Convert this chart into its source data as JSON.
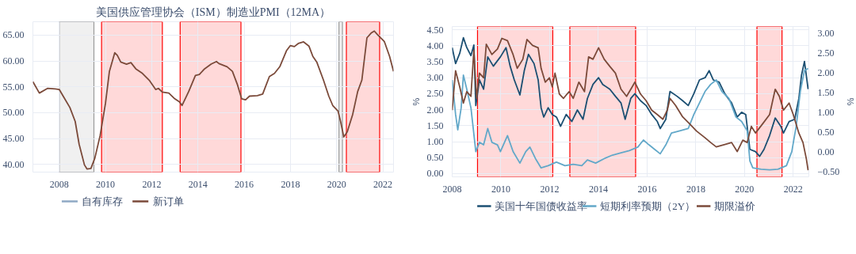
{
  "chart_data": [
    {
      "type": "line",
      "title": "美国供应管理协会（ISM）制造业PMI（12MA）",
      "xlim": [
        2006.86,
        2022.46
      ],
      "ylim": [
        38.5,
        67.6
      ],
      "xticks": [
        2008,
        2010,
        2012,
        2014,
        2016,
        2018,
        2020,
        2022
      ],
      "yticks": [
        {
          "value": 40,
          "label": "40.00"
        },
        {
          "value": 45,
          "label": "45.00"
        },
        {
          "value": 50,
          "label": "50.00"
        },
        {
          "value": 55,
          "label": "55.00"
        },
        {
          "value": 60,
          "label": "60.00"
        },
        {
          "value": 65,
          "label": "65.00"
        }
      ],
      "grid": true,
      "legend": "bottom",
      "bands": [
        {
          "axis": "x",
          "from": 2008.0,
          "to": 2009.5,
          "color": "#9a9a9a"
        },
        {
          "axis": "x",
          "from": 2020.1,
          "to": 2020.25,
          "color": "#9a9a9a"
        },
        {
          "axis": "x",
          "from": 2009.83,
          "to": 2012.46,
          "color": "#ff0000"
        },
        {
          "axis": "x",
          "from": 2013.23,
          "to": 2015.86,
          "color": "#ff0000"
        },
        {
          "axis": "x",
          "from": 2020.42,
          "to": 2021.86,
          "color": "#ff0000"
        }
      ],
      "series": [
        {
          "name": "自有库存",
          "color": "#8fa9c4"
        },
        {
          "name": "新订单",
          "color": "#7b4a3a",
          "x": [
            2006.86,
            2007.14,
            2007.49,
            2007.83,
            2008.0,
            2008.17,
            2008.46,
            2008.69,
            2008.86,
            2009.09,
            2009.2,
            2009.37,
            2009.54,
            2009.77,
            2010.0,
            2010.17,
            2010.4,
            2010.51,
            2010.66,
            2010.91,
            2011.1,
            2011.31,
            2011.6,
            2011.89,
            2012.17,
            2012.29,
            2012.46,
            2012.74,
            2012.97,
            2013.2,
            2013.31,
            2013.6,
            2013.89,
            2014.06,
            2014.29,
            2014.57,
            2014.8,
            2014.91,
            2015.26,
            2015.49,
            2015.71,
            2015.89,
            2016.06,
            2016.23,
            2016.57,
            2016.8,
            2017.09,
            2017.31,
            2017.54,
            2017.83,
            2018.0,
            2018.17,
            2018.34,
            2018.57,
            2018.8,
            2018.97,
            2019.14,
            2019.43,
            2019.66,
            2019.83,
            2020.06,
            2020.17,
            2020.31,
            2020.46,
            2020.69,
            2020.91,
            2021.09,
            2021.31,
            2021.49,
            2021.63,
            2021.77,
            2022.06,
            2022.29,
            2022.46
          ],
          "values": [
            56.0,
            53.8,
            54.7,
            54.6,
            54.5,
            53.2,
            51.0,
            48.3,
            43.9,
            39.9,
            39.1,
            39.2,
            41.2,
            45.6,
            51.8,
            58.0,
            61.6,
            61.1,
            59.8,
            59.4,
            59.7,
            58.5,
            57.6,
            56.3,
            54.5,
            54.7,
            54.0,
            53.8,
            52.8,
            52.1,
            51.4,
            54.1,
            57.2,
            57.4,
            58.5,
            59.4,
            59.9,
            59.5,
            58.9,
            58.0,
            55.4,
            52.7,
            52.5,
            53.2,
            53.3,
            53.6,
            57.0,
            57.6,
            58.9,
            62.0,
            63.0,
            62.8,
            63.4,
            63.7,
            62.9,
            60.9,
            59.8,
            56.3,
            53.2,
            51.4,
            50.3,
            48.3,
            45.3,
            46.3,
            49.6,
            54.1,
            56.3,
            64.5,
            65.4,
            65.8,
            65.1,
            63.8,
            60.9,
            58.0
          ]
        }
      ]
    },
    {
      "type": "line",
      "ylabel": "%",
      "y2label": "%",
      "xlim": [
        2008.0,
        2022.64
      ],
      "ylim": [
        -0.1,
        4.6
      ],
      "y2lim": [
        -0.63,
        3.18
      ],
      "xticks": [
        2008,
        2010,
        2012,
        2014,
        2016,
        2018,
        2020,
        2022
      ],
      "yticks": [
        {
          "value": 0,
          "label": "0.00"
        },
        {
          "value": 0.5,
          "label": "0.50"
        },
        {
          "value": 1,
          "label": "1.00"
        },
        {
          "value": 1.5,
          "label": "1.50"
        },
        {
          "value": 2,
          "label": "2.00"
        },
        {
          "value": 2.5,
          "label": "2.50"
        },
        {
          "value": 3,
          "label": "3.00"
        },
        {
          "value": 3.5,
          "label": "3.50"
        },
        {
          "value": 4,
          "label": "4.00"
        },
        {
          "value": 4.5,
          "label": "4.50"
        }
      ],
      "y2ticks": [
        {
          "value": -0.5,
          "label": "−0.50"
        },
        {
          "value": 0,
          "label": "0.00"
        },
        {
          "value": 0.5,
          "label": "0.50"
        },
        {
          "value": 1,
          "label": "1.00"
        },
        {
          "value": 1.5,
          "label": "1.50"
        },
        {
          "value": 2,
          "label": "2.00"
        },
        {
          "value": 2.5,
          "label": "2.50"
        },
        {
          "value": 3,
          "label": "3.00"
        }
      ],
      "grid": true,
      "legend": "bottom",
      "bands": [
        {
          "axis": "x",
          "from": 2009.04,
          "to": 2012.13,
          "color": "#ff0000"
        },
        {
          "axis": "x",
          "from": 2012.83,
          "to": 2015.53,
          "color": "#ff0000"
        },
        {
          "axis": "x",
          "from": 2020.51,
          "to": 2021.54,
          "color": "#ff0000"
        }
      ],
      "series": [
        {
          "name": "美国十年国债收益率",
          "color": "#1b4f72",
          "x": [
            2008.0,
            2008.14,
            2008.31,
            2008.46,
            2008.6,
            2008.77,
            2008.89,
            2008.97,
            2009.12,
            2009.29,
            2009.46,
            2009.69,
            2009.98,
            2010.21,
            2010.38,
            2010.55,
            2010.78,
            2010.96,
            2011.13,
            2011.36,
            2011.53,
            2011.65,
            2011.76,
            2011.94,
            2012.11,
            2012.28,
            2012.45,
            2012.68,
            2012.91,
            2013.14,
            2013.37,
            2013.55,
            2013.78,
            2014.01,
            2014.18,
            2014.47,
            2014.7,
            2014.93,
            2015.1,
            2015.33,
            2015.5,
            2015.73,
            2015.96,
            2016.19,
            2016.42,
            2016.54,
            2016.77,
            2016.94,
            2017.23,
            2017.46,
            2017.69,
            2017.92,
            2018.15,
            2018.38,
            2018.55,
            2018.72,
            2018.96,
            2019.19,
            2019.47,
            2019.7,
            2019.88,
            2020.05,
            2020.22,
            2020.45,
            2020.62,
            2020.8,
            2021.03,
            2021.26,
            2021.49,
            2021.6,
            2021.83,
            2022.06,
            2022.23,
            2022.34,
            2022.46,
            2022.61
          ],
          "values": [
            3.94,
            3.44,
            3.76,
            4.25,
            3.94,
            3.69,
            4.02,
            2.13,
            2.93,
            2.64,
            3.65,
            3.36,
            3.65,
            3.94,
            3.36,
            2.93,
            2.46,
            3.22,
            3.73,
            3.44,
            2.93,
            2.06,
            1.77,
            2.06,
            1.85,
            1.77,
            1.48,
            1.85,
            1.63,
            1.99,
            1.7,
            2.35,
            2.79,
            3.0,
            2.79,
            2.64,
            2.42,
            2.21,
            1.7,
            2.35,
            2.5,
            2.28,
            2.13,
            1.85,
            1.63,
            1.41,
            1.7,
            2.57,
            2.42,
            2.28,
            2.13,
            2.5,
            2.93,
            3.0,
            3.22,
            2.93,
            2.86,
            2.5,
            2.21,
            1.77,
            1.92,
            1.85,
            0.76,
            0.69,
            0.54,
            0.76,
            1.19,
            1.74,
            1.48,
            1.27,
            1.63,
            1.7,
            2.35,
            3.08,
            3.51,
            2.64
          ]
        },
        {
          "name": "短期利率预期（2Y）",
          "color": "#62a8c9",
          "x": [
            2008.0,
            2008.14,
            2008.23,
            2008.37,
            2008.46,
            2008.6,
            2008.77,
            2008.97,
            2009.12,
            2009.29,
            2009.46,
            2009.63,
            2009.86,
            2009.98,
            2010.27,
            2010.5,
            2010.78,
            2011.02,
            2011.19,
            2011.42,
            2011.65,
            2011.94,
            2012.28,
            2012.63,
            2012.97,
            2013.32,
            2013.55,
            2013.89,
            2014.24,
            2014.58,
            2014.93,
            2015.27,
            2015.62,
            2015.85,
            2016.08,
            2016.31,
            2016.54,
            2016.77,
            2017.0,
            2017.34,
            2017.69,
            2017.92,
            2018.15,
            2018.38,
            2018.61,
            2018.84,
            2019.07,
            2019.36,
            2019.65,
            2019.88,
            2020.11,
            2020.22,
            2020.34,
            2020.68,
            2021.03,
            2021.37,
            2021.72,
            2021.94,
            2022.12,
            2022.29,
            2022.46,
            2022.61
          ],
          "values": [
            2.93,
            1.85,
            1.37,
            2.06,
            3.08,
            2.64,
            2.06,
            0.69,
            0.98,
            0.9,
            1.41,
            0.98,
            0.9,
            0.69,
            1.19,
            0.69,
            0.33,
            0.69,
            0.83,
            0.47,
            0.18,
            0.25,
            0.36,
            0.25,
            0.29,
            0.25,
            0.43,
            0.33,
            0.47,
            0.58,
            0.65,
            0.72,
            0.83,
            1.05,
            0.9,
            0.76,
            0.62,
            0.9,
            1.27,
            1.34,
            1.41,
            1.85,
            2.21,
            2.57,
            2.79,
            2.93,
            2.57,
            2.35,
            1.77,
            1.63,
            1.34,
            0.4,
            0.18,
            0.14,
            0.12,
            0.14,
            0.25,
            0.69,
            1.48,
            2.57,
            3.22,
            3.29
          ]
        },
        {
          "name": "期限溢价",
          "color": "#7b4a3a",
          "axis": "y2",
          "x": [
            2008.0,
            2008.14,
            2008.31,
            2008.46,
            2008.6,
            2008.77,
            2008.89,
            2009.0,
            2009.12,
            2009.29,
            2009.4,
            2009.63,
            2009.86,
            2010.04,
            2010.27,
            2010.5,
            2010.67,
            2010.9,
            2011.07,
            2011.3,
            2011.53,
            2011.65,
            2011.82,
            2011.99,
            2012.11,
            2012.22,
            2012.4,
            2012.57,
            2012.8,
            2012.97,
            2013.2,
            2013.43,
            2013.6,
            2013.78,
            2014.01,
            2014.24,
            2014.47,
            2014.7,
            2014.93,
            2015.16,
            2015.39,
            2015.5,
            2015.73,
            2015.96,
            2016.19,
            2016.42,
            2016.65,
            2016.83,
            2016.94,
            2017.17,
            2017.46,
            2017.75,
            2018.03,
            2018.38,
            2018.61,
            2018.84,
            2019.19,
            2019.47,
            2019.7,
            2019.93,
            2020.11,
            2020.28,
            2020.45,
            2020.74,
            2021.03,
            2021.26,
            2021.43,
            2021.6,
            2021.83,
            2022.0,
            2022.23,
            2022.4,
            2022.54,
            2022.61
          ],
          "values": [
            1.06,
            2.06,
            1.65,
            1.24,
            1.53,
            1.41,
            2.58,
            1.36,
            2.0,
            1.88,
            2.73,
            2.47,
            2.61,
            2.88,
            2.82,
            2.47,
            2.12,
            2.35,
            2.85,
            2.7,
            2.64,
            2.12,
            1.77,
            1.88,
            1.65,
            2.0,
            1.47,
            1.36,
            1.53,
            1.36,
            1.77,
            1.53,
            2.41,
            2.35,
            2.64,
            2.35,
            2.17,
            2.0,
            1.59,
            1.41,
            1.65,
            1.77,
            1.47,
            1.3,
            1.06,
            0.95,
            0.83,
            1.06,
            1.36,
            1.18,
            0.89,
            0.71,
            0.53,
            0.36,
            0.24,
            0.13,
            0.19,
            0.24,
            0.01,
            0.3,
            0.24,
            0.65,
            0.48,
            0.71,
            0.95,
            1.59,
            1.41,
            1.06,
            1.24,
            0.95,
            0.48,
            0.24,
            -0.18,
            -0.46
          ]
        }
      ]
    }
  ]
}
